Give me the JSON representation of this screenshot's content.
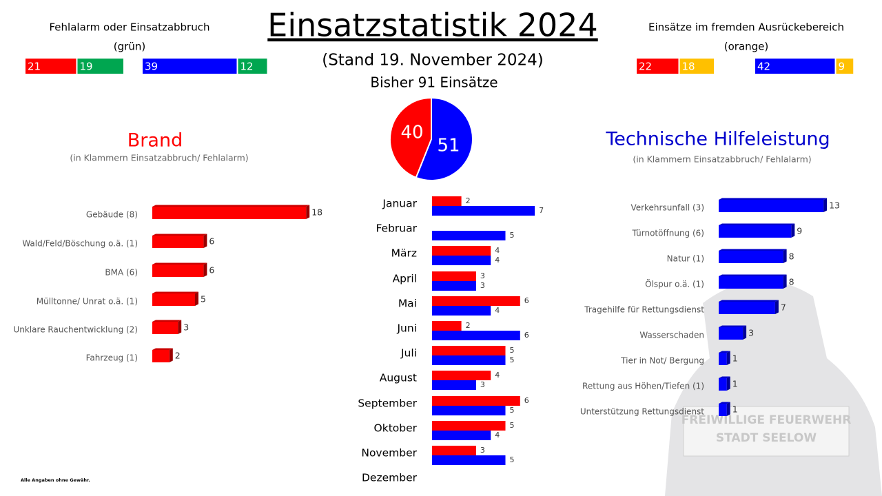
{
  "title": "Einsatzstatistik 2024",
  "subtitle": "(Stand 19. November 2024)",
  "total_label": "Bisher 91 Einsätze",
  "footnote": "Alle Angaben ohne Gewähr.",
  "watermark": [
    "FREIWILLIGE FEUERWEHR",
    "STADT SEELOW"
  ],
  "chart_data": [
    {
      "type": "stacked-bar",
      "title": "Fehlalarm oder Einsatzabbruch",
      "subtitle": "(grün)",
      "categories": [
        null,
        null
      ],
      "series": [
        {
          "colors": [
            "#ff0000",
            "#0000ff"
          ],
          "values": [
            21,
            39
          ]
        },
        {
          "color": "#00a650",
          "values": [
            19,
            12
          ]
        }
      ]
    },
    {
      "type": "stacked-bar",
      "title": "Einsätze im fremden Ausrückebereich",
      "subtitle": "(orange)",
      "categories": [
        null,
        null
      ],
      "series": [
        {
          "colors": [
            "#ff0000",
            "#0000ff"
          ],
          "values": [
            22,
            42
          ]
        },
        {
          "color": "#ffc000",
          "values": [
            18,
            9
          ]
        }
      ]
    },
    {
      "type": "pie",
      "values": [
        40,
        51
      ],
      "colors": [
        "#ff0000",
        "#0000ff"
      ]
    },
    {
      "type": "bar",
      "title": "Brand",
      "subtitle": "(in Klammern Einsatzabbruch/ Fehlalarm)",
      "title_color": "#ff0000",
      "categories": [
        "Gebäude (8)",
        "Wald/Feld/Böschung o.ä. (1)",
        "BMA (6)",
        "Mülltonne/ Unrat o.ä. (1)",
        "Unklare Rauchentwicklung (2)",
        "Fahrzeug (1)"
      ],
      "series": [
        {
          "color": "#ff0000",
          "values": [
            18,
            6,
            6,
            5,
            3,
            2
          ]
        }
      ]
    },
    {
      "type": "bar",
      "categories": [
        "Januar",
        "Februar",
        "März",
        "April",
        "Mai",
        "Juni",
        "Juli",
        "August",
        "September",
        "Oktober",
        "November",
        "Dezember"
      ],
      "series": [
        {
          "color": "#ff0000",
          "values": [
            2,
            null,
            4,
            3,
            6,
            2,
            5,
            4,
            6,
            5,
            3,
            null
          ]
        },
        {
          "color": "#0000ff",
          "values": [
            7,
            5,
            4,
            3,
            4,
            6,
            5,
            3,
            5,
            4,
            5,
            null
          ]
        }
      ]
    },
    {
      "type": "bar",
      "title": "Technische Hilfeleistung",
      "subtitle": "(in Klammern Einsatzabbruch/ Fehlalarm)",
      "title_color": "#0000cc",
      "categories": [
        "Verkehrsunfall (3)",
        "Türnotöffnung (6)",
        "Natur (1)",
        "Ölspur o.ä. (1)",
        "Tragehilfe für Rettungsdienst",
        "Wasserschaden",
        "Tier in Not/ Bergung",
        "Rettung aus Höhen/Tiefen (1)",
        "Unterstützung Rettungsdienst"
      ],
      "series": [
        {
          "color": "#0000ff",
          "values": [
            13,
            9,
            8,
            8,
            7,
            3,
            1,
            1,
            1
          ]
        }
      ]
    }
  ]
}
